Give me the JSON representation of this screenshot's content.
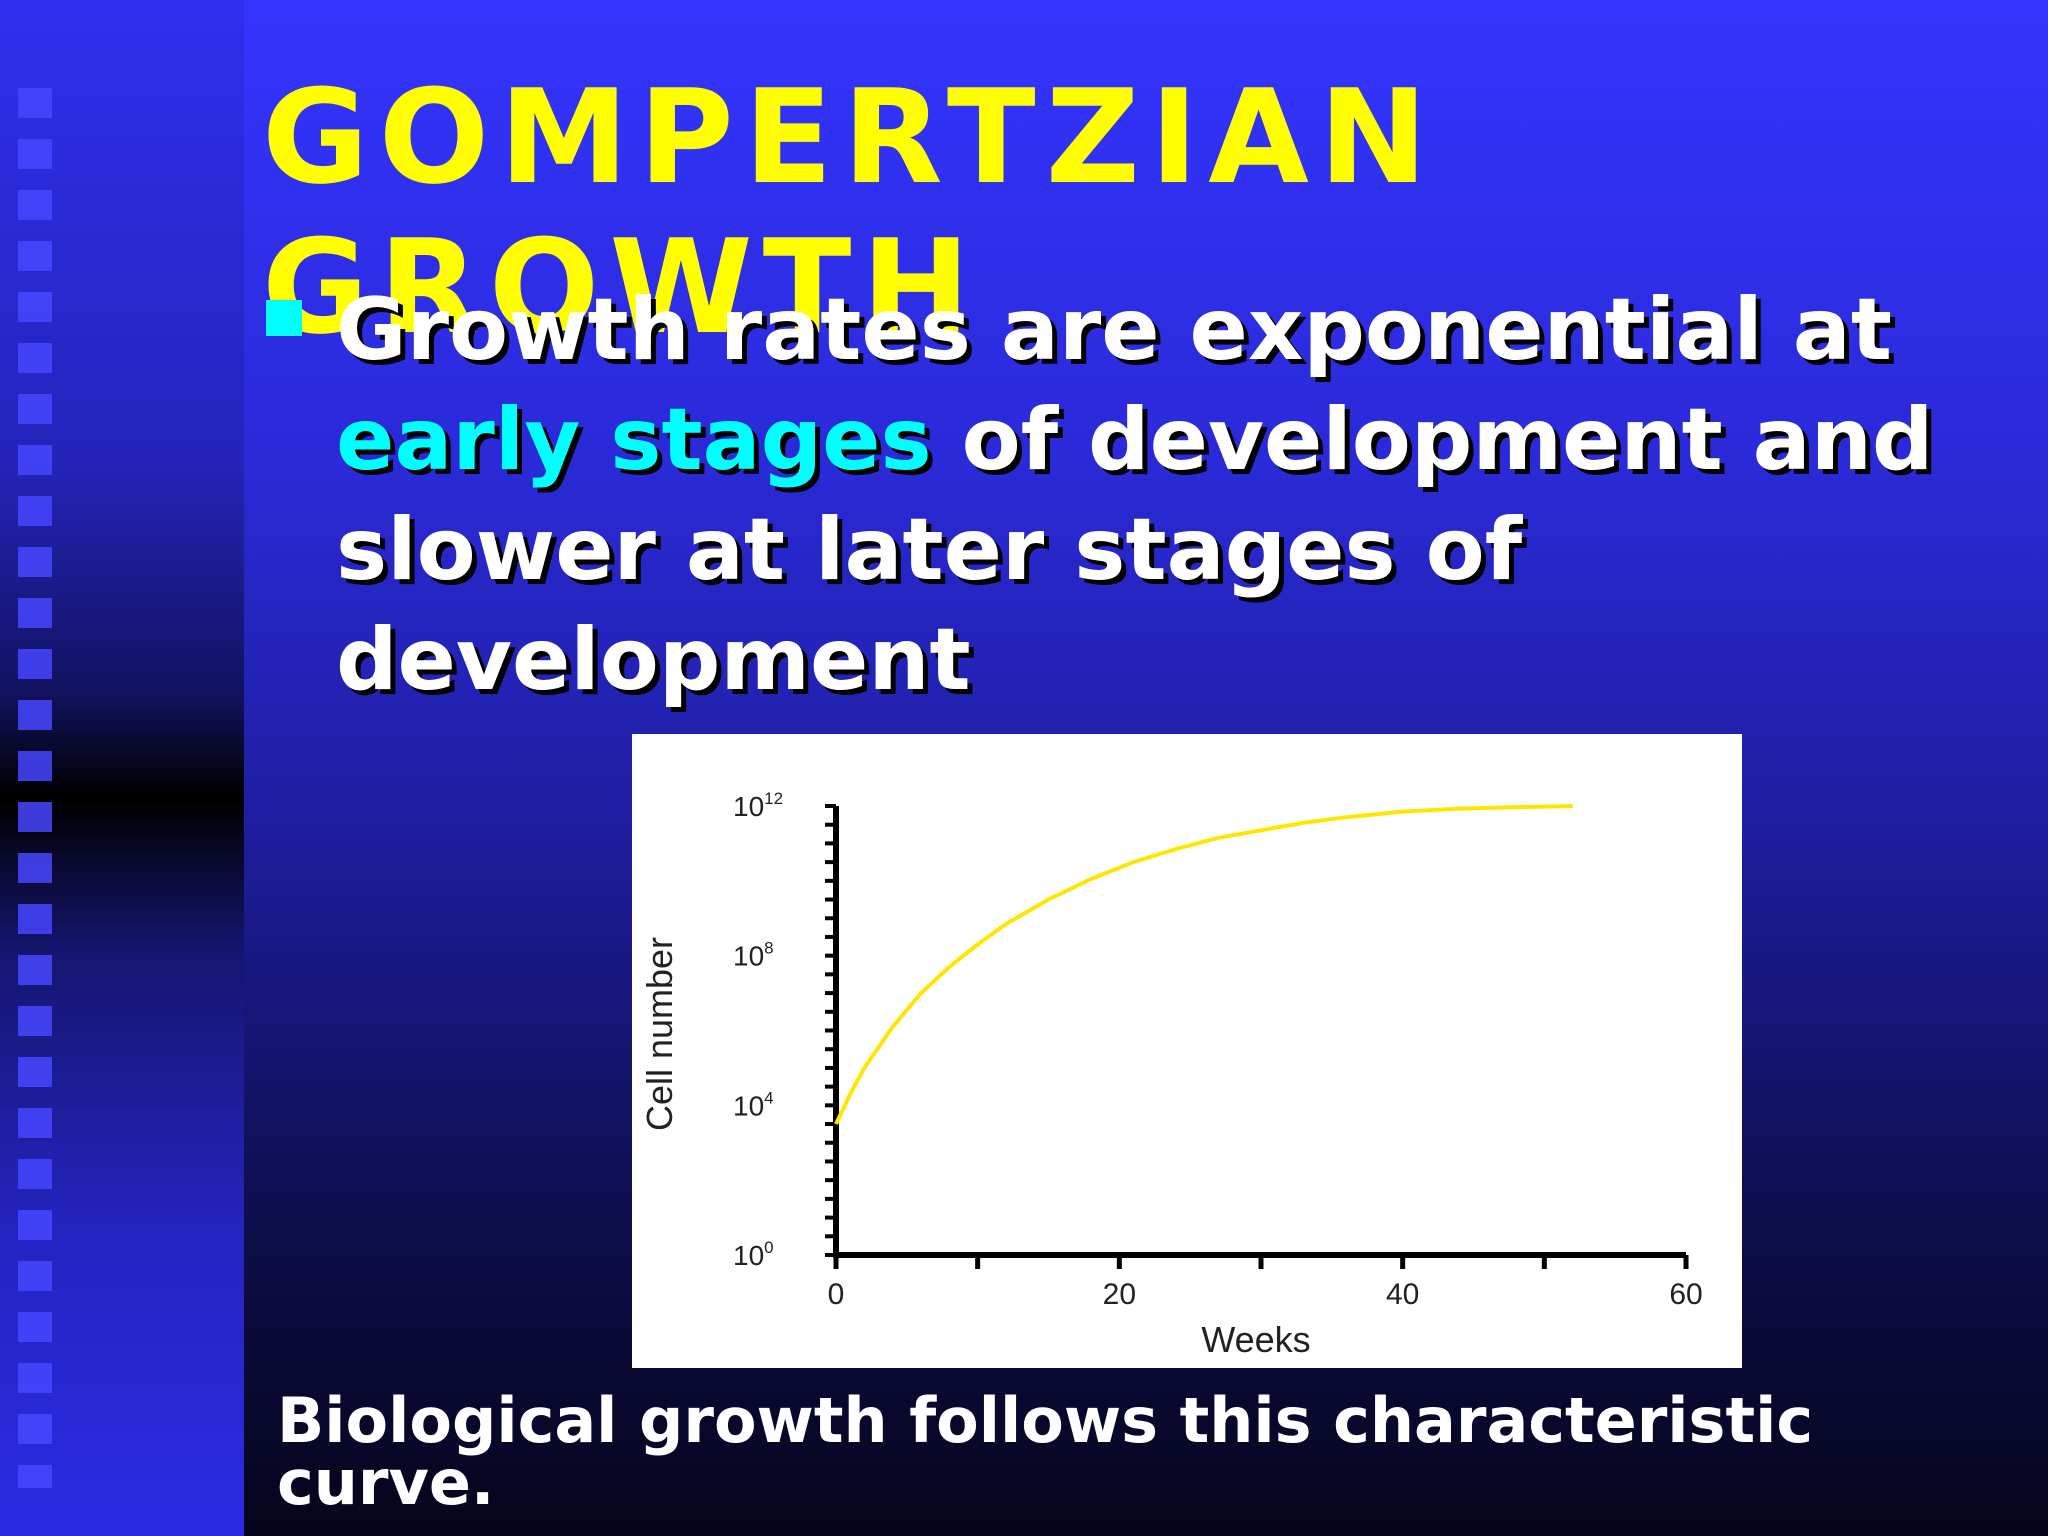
{
  "slide": {
    "title": "GOMPERTZIAN GROWTH",
    "bullet": {
      "part1": "Growth rates are exponential at ",
      "highlight": "early stages",
      "part2": " of development and slower at later stages of development"
    },
    "caption": "Biological growth follows this characteristic curve."
  },
  "colors": {
    "title": "#ffff00",
    "highlight": "#00ffff",
    "curve": "#ffe600",
    "body_text": "#ffffff"
  },
  "chart_data": {
    "type": "line",
    "title": "",
    "xlabel": "Weeks",
    "ylabel": "Cell number",
    "xlim": [
      0,
      60
    ],
    "y_scale": "log10",
    "ylim_log10": [
      0,
      12
    ],
    "x_ticks": [
      "0",
      "20",
      "40",
      "60"
    ],
    "y_ticks": [
      {
        "base": "10",
        "exp": "0",
        "log10": 0
      },
      {
        "base": "10",
        "exp": "4",
        "log10": 4
      },
      {
        "base": "10",
        "exp": "8",
        "log10": 8
      },
      {
        "base": "10",
        "exp": "12",
        "log10": 12
      }
    ],
    "series": [
      {
        "x": [
          0,
          1,
          2,
          4,
          6,
          8,
          10,
          12,
          15,
          18,
          21,
          24,
          27,
          30,
          33,
          36,
          40,
          44,
          48,
          52
        ],
        "log10_y": [
          3.5,
          4.3,
          5.0,
          6.1,
          7.0,
          7.7,
          8.3,
          8.85,
          9.5,
          10.05,
          10.5,
          10.85,
          11.15,
          11.35,
          11.55,
          11.7,
          11.85,
          11.93,
          11.97,
          12.0
        ]
      }
    ]
  }
}
